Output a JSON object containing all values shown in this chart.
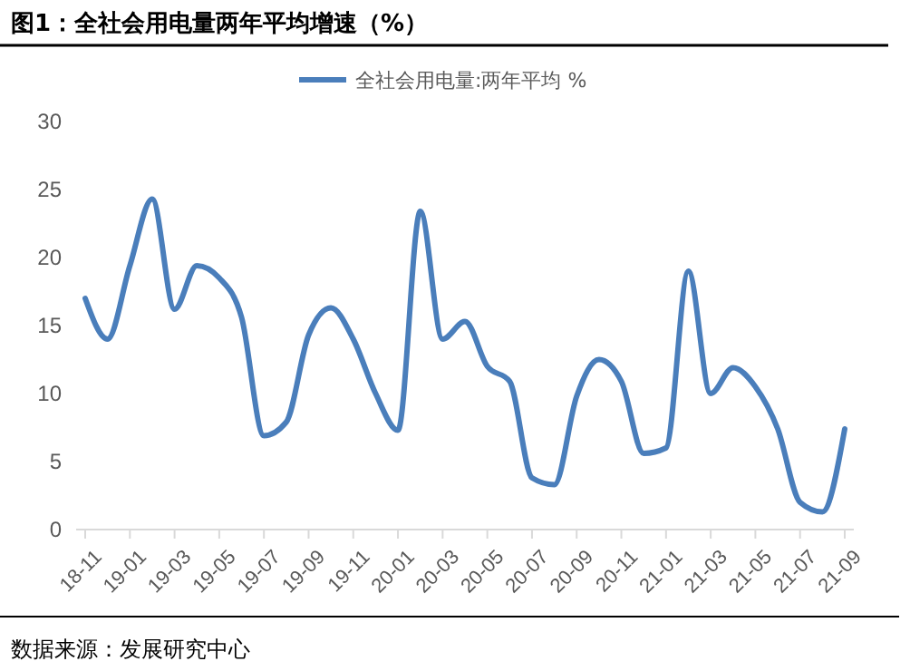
{
  "chart_data": {
    "type": "line",
    "title": "图1：全社会用电量两年平均增速（%）",
    "categories": [
      "18-11",
      null,
      "19-01",
      null,
      "19-03",
      null,
      "19-05",
      null,
      "19-07",
      null,
      "19-09",
      null,
      "19-11",
      null,
      "20-01",
      null,
      "20-03",
      null,
      "20-05",
      null,
      "20-07",
      null,
      "20-09",
      null,
      "20-11",
      null,
      "21-01",
      null,
      "21-03",
      null,
      "21-05",
      null,
      "21-07",
      null,
      "21-09"
    ],
    "series": [
      {
        "name": "全社会用电量:两年平均 %",
        "color": "#4a7ebb",
        "values": [
          17,
          14,
          19.4,
          24.3,
          16.2,
          19.4,
          18.5,
          15.6,
          6.9,
          7.9,
          14.3,
          16.3,
          14,
          10,
          7.3,
          23.4,
          14,
          15.3,
          12,
          10.9,
          3.8,
          3.3,
          9.8,
          12.5,
          10.9,
          5.6,
          6,
          19,
          10,
          11.9,
          10.5,
          7.4,
          2,
          1.3,
          7.4
        ]
      }
    ],
    "ylim": [
      0,
      30
    ],
    "yticks": [
      0,
      5,
      10,
      15,
      20,
      25,
      30
    ],
    "grid": false,
    "legend": "top",
    "marker": "none",
    "line_style": "solid",
    "annotations": [
      "数据来源：发展研究中心"
    ]
  }
}
